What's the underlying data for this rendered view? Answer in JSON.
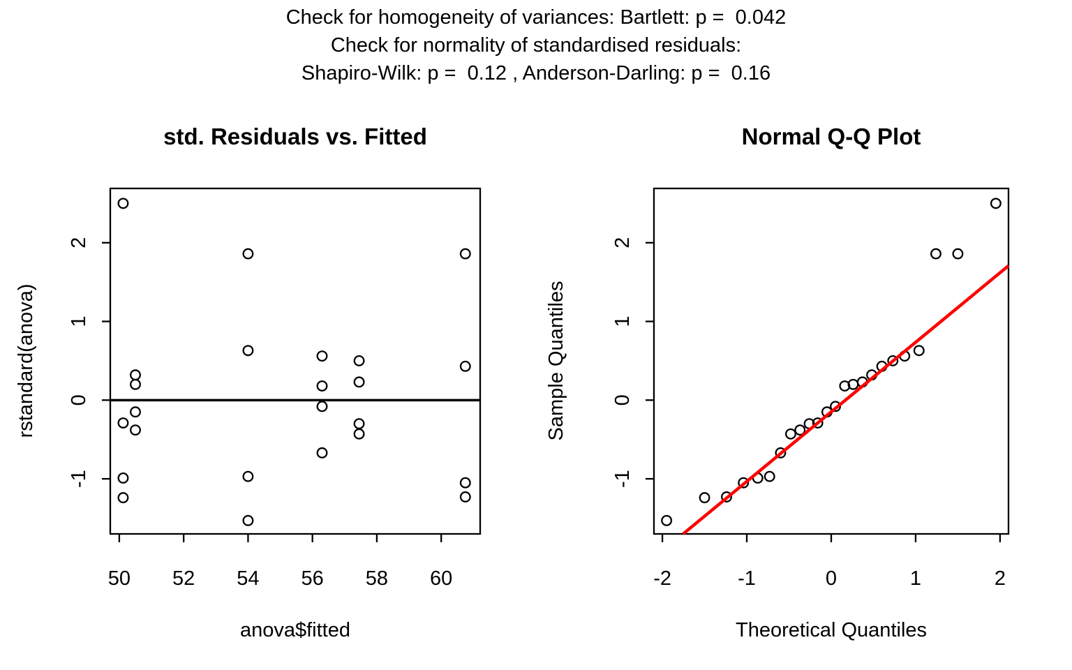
{
  "header": {
    "lines": [
      "Check for homogeneity of variances: Bartlett: p =  0.042",
      "Check for normality of standardised residuals:",
      "Shapiro-Wilk: p =  0.12 , Anderson-Darling: p =  0.16"
    ],
    "values": {
      "bartlett_p": 0.042,
      "shapiro_wilk_p": 0.12,
      "anderson_darling_p": 0.16
    }
  },
  "colors": {
    "foreground": "#000000",
    "background": "#ffffff",
    "qq_line": "#ff0000"
  },
  "chart_data": [
    {
      "type": "scatter",
      "title": "std. Residuals vs. Fitted",
      "xlabel": "anova$fitted",
      "ylabel": "rstandard(anova)",
      "xlim": [
        49.72,
        61.21
      ],
      "ylim": [
        -1.7,
        2.69
      ],
      "xticks": [
        50,
        52,
        54,
        56,
        58,
        60
      ],
      "yticks": [
        -1,
        0,
        1,
        2
      ],
      "grid": false,
      "marker": "open-circle",
      "hline_y": 0,
      "points": [
        [
          50.12,
          2.5
        ],
        [
          50.12,
          -0.29
        ],
        [
          50.12,
          -0.99
        ],
        [
          50.12,
          -1.24
        ],
        [
          50.5,
          0.32
        ],
        [
          50.5,
          0.2
        ],
        [
          50.5,
          -0.15
        ],
        [
          50.5,
          -0.38
        ],
        [
          54.0,
          1.86
        ],
        [
          54.0,
          0.63
        ],
        [
          54.0,
          -0.97
        ],
        [
          54.0,
          -1.53
        ],
        [
          56.3,
          0.56
        ],
        [
          56.3,
          0.18
        ],
        [
          56.3,
          -0.08
        ],
        [
          56.3,
          -0.67
        ],
        [
          57.45,
          0.5
        ],
        [
          57.45,
          0.23
        ],
        [
          57.45,
          -0.3
        ],
        [
          57.45,
          -0.43
        ],
        [
          60.75,
          1.86
        ],
        [
          60.75,
          0.43
        ],
        [
          60.75,
          -1.05
        ],
        [
          60.75,
          -1.23
        ]
      ]
    },
    {
      "type": "scatter",
      "title": "Normal Q-Q Plot",
      "xlabel": "Theoretical Quantiles",
      "ylabel": "Sample Quantiles",
      "xlim": [
        -2.1,
        2.1
      ],
      "ylim": [
        -1.7,
        2.69
      ],
      "xticks": [
        -2,
        -1,
        0,
        1,
        2
      ],
      "yticks": [
        -1,
        0,
        1,
        2
      ],
      "grid": false,
      "marker": "open-circle",
      "qq_line": {
        "slope": 0.884,
        "intercept": -0.149,
        "color": "#ff0000"
      },
      "points": [
        [
          -1.95,
          -1.53
        ],
        [
          -1.5,
          -1.24
        ],
        [
          -1.24,
          -1.23
        ],
        [
          -1.04,
          -1.05
        ],
        [
          -0.87,
          -0.99
        ],
        [
          -0.73,
          -0.97
        ],
        [
          -0.6,
          -0.67
        ],
        [
          -0.48,
          -0.43
        ],
        [
          -0.37,
          -0.38
        ],
        [
          -0.26,
          -0.3
        ],
        [
          -0.16,
          -0.29
        ],
        [
          -0.05,
          -0.15
        ],
        [
          0.05,
          -0.08
        ],
        [
          0.16,
          0.18
        ],
        [
          0.26,
          0.2
        ],
        [
          0.37,
          0.23
        ],
        [
          0.48,
          0.32
        ],
        [
          0.6,
          0.43
        ],
        [
          0.73,
          0.5
        ],
        [
          0.87,
          0.56
        ],
        [
          1.04,
          0.63
        ],
        [
          1.24,
          1.86
        ],
        [
          1.5,
          1.86
        ],
        [
          1.95,
          2.5
        ]
      ]
    }
  ]
}
